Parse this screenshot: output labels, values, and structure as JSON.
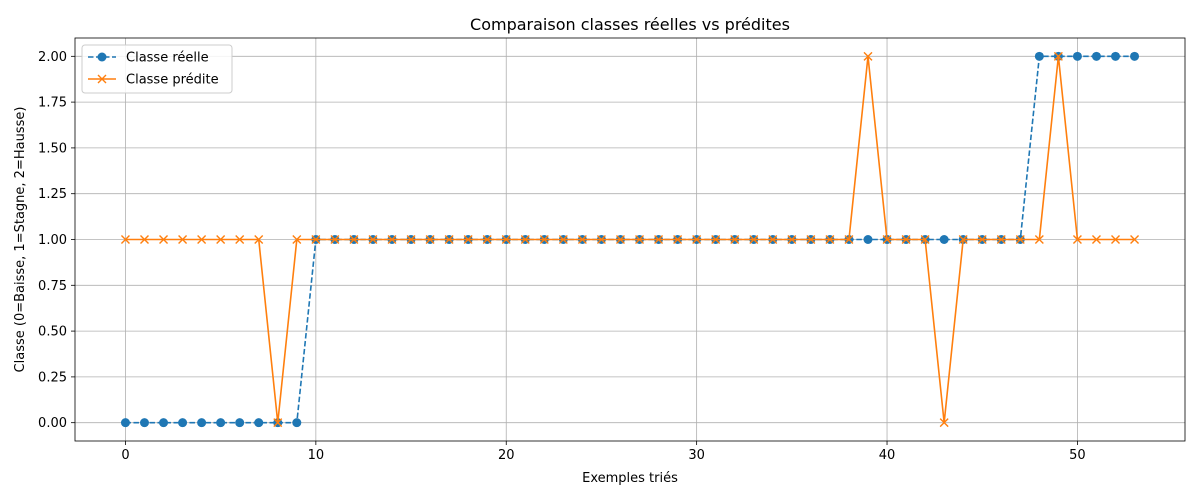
{
  "chart_data": {
    "type": "line",
    "title": "Comparaison classes réelles vs prédites",
    "xlabel": "Exemples triés",
    "ylabel": "Classe (0=Baisse, 1=Stagne, 2=Hausse)",
    "xlim": [
      -2.65,
      55.65
    ],
    "ylim": [
      -0.1,
      2.1
    ],
    "xticks": [
      0,
      10,
      20,
      30,
      40,
      50
    ],
    "yticks": [
      0.0,
      0.25,
      0.5,
      0.75,
      1.0,
      1.25,
      1.5,
      1.75,
      2.0
    ],
    "ytick_labels": [
      "0.00",
      "0.25",
      "0.50",
      "0.75",
      "1.00",
      "1.25",
      "1.50",
      "1.75",
      "2.00"
    ],
    "grid": true,
    "legend_position": "top-left",
    "x": [
      0,
      1,
      2,
      3,
      4,
      5,
      6,
      7,
      8,
      9,
      10,
      11,
      12,
      13,
      14,
      15,
      16,
      17,
      18,
      19,
      20,
      21,
      22,
      23,
      24,
      25,
      26,
      27,
      28,
      29,
      30,
      31,
      32,
      33,
      34,
      35,
      36,
      37,
      38,
      39,
      40,
      41,
      42,
      43,
      44,
      45,
      46,
      47,
      48,
      49,
      50,
      51,
      52,
      53
    ],
    "series": [
      {
        "name": "Classe réelle",
        "color": "#1f77b4",
        "line_style": "dashed",
        "marker": "circle",
        "values": [
          0,
          0,
          0,
          0,
          0,
          0,
          0,
          0,
          0,
          0,
          1,
          1,
          1,
          1,
          1,
          1,
          1,
          1,
          1,
          1,
          1,
          1,
          1,
          1,
          1,
          1,
          1,
          1,
          1,
          1,
          1,
          1,
          1,
          1,
          1,
          1,
          1,
          1,
          1,
          1,
          1,
          1,
          1,
          1,
          1,
          1,
          1,
          1,
          2,
          2,
          2,
          2,
          2,
          2
        ]
      },
      {
        "name": "Classe prédite",
        "color": "#ff7f0e",
        "line_style": "solid",
        "marker": "x",
        "values": [
          1,
          1,
          1,
          1,
          1,
          1,
          1,
          1,
          0,
          1,
          1,
          1,
          1,
          1,
          1,
          1,
          1,
          1,
          1,
          1,
          1,
          1,
          1,
          1,
          1,
          1,
          1,
          1,
          1,
          1,
          1,
          1,
          1,
          1,
          1,
          1,
          1,
          1,
          1,
          2,
          1,
          1,
          1,
          0,
          1,
          1,
          1,
          1,
          1,
          2,
          1,
          1,
          1,
          1
        ]
      }
    ]
  }
}
